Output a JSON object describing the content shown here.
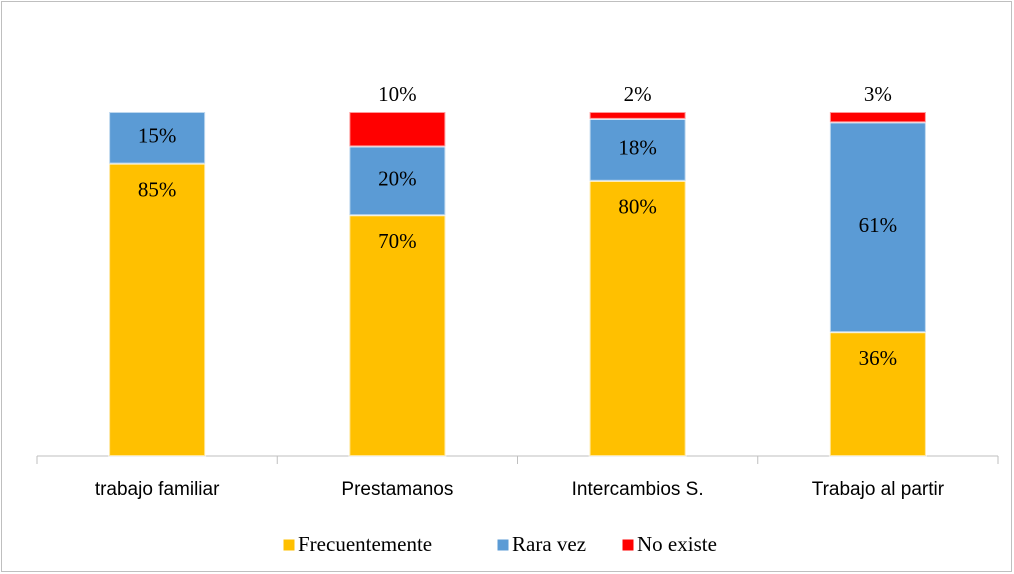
{
  "chart_data": {
    "type": "stacked_bar",
    "categories": [
      "trabajo familiar",
      "Prestamanos",
      "Intercambios S.",
      "Trabajo al partir"
    ],
    "series": [
      {
        "name": "Frecuentemente",
        "color": "#FFC000",
        "values": [
          85,
          70,
          80,
          36
        ],
        "value_labels": [
          "85%",
          "70%",
          "80%",
          "36%"
        ]
      },
      {
        "name": "Rara vez",
        "color": "#5B9BD5",
        "values": [
          15,
          20,
          18,
          61
        ],
        "value_labels": [
          "15%",
          "20%",
          "18%",
          "61%"
        ]
      },
      {
        "name": "No existe",
        "color": "#FF0000",
        "values": [
          null,
          10,
          2,
          3
        ],
        "value_labels": [
          null,
          "10%",
          "2%",
          "3%"
        ]
      }
    ],
    "ylim": [
      0,
      100
    ],
    "legend": "bottom"
  }
}
